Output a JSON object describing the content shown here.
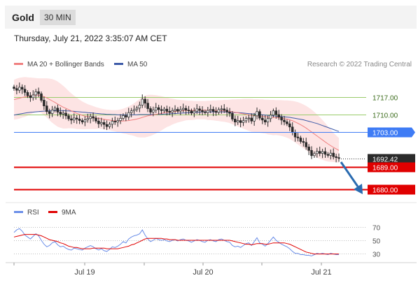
{
  "header": {
    "symbol": "Gold",
    "timeframe": "30 MIN"
  },
  "timestamp": "Thursday, July 21, 2022 3:35:07 AM CET",
  "legend": {
    "ma20": "MA 20 + Bollinger Bands",
    "ma50": "MA 50",
    "rsi": "RSI",
    "rsi_ma": "9MA"
  },
  "credit": "Research © 2022 Trading Central",
  "colors": {
    "ma20": "#f08080",
    "bollinger": "#fde4e4",
    "ma50": "#3d5aa8",
    "blue_level": "#3f7cf5",
    "red_level": "#e00000",
    "green_level": "#9acb6a",
    "arrow": "#2a6bb0",
    "rsi": "#6a8ee8",
    "rsi_ma": "#e00000"
  },
  "chart_data": [
    {
      "type": "candlestick",
      "title": "Gold",
      "ylim": [
        1676,
        1728
      ],
      "x_ticks": [
        "Jul 19",
        "Jul 20",
        "Jul 21"
      ],
      "levels": [
        {
          "label": "1717.00",
          "value": 1717.0,
          "kind": "green"
        },
        {
          "label": "1710.00",
          "value": 1710.0,
          "kind": "green"
        },
        {
          "label": "1703.00",
          "value": 1703.0,
          "kind": "blue"
        },
        {
          "label": "1692.42",
          "value": 1692.42,
          "kind": "current"
        },
        {
          "label": "1689.00",
          "value": 1689.0,
          "kind": "red"
        },
        {
          "label": "1680.00",
          "value": 1680.0,
          "kind": "red"
        }
      ],
      "close": [
        1720.5,
        1719.8,
        1721.0,
        1720.2,
        1718.9,
        1717.6,
        1716.8,
        1717.9,
        1719.2,
        1718.4,
        1715.8,
        1713.5,
        1711.2,
        1710.4,
        1711.8,
        1712.6,
        1711.0,
        1710.2,
        1710.6,
        1709.5,
        1708.3,
        1707.8,
        1708.6,
        1708.2,
        1707.6,
        1707.0,
        1707.9,
        1708.4,
        1709.2,
        1708.6,
        1707.4,
        1706.3,
        1706.8,
        1706.0,
        1705.2,
        1706.1,
        1707.3,
        1707.0,
        1707.6,
        1708.5,
        1709.6,
        1709.0,
        1710.8,
        1711.5,
        1712.0,
        1712.6,
        1713.8,
        1716.2,
        1714.6,
        1712.4,
        1711.0,
        1711.8,
        1712.8,
        1712.0,
        1711.6,
        1712.2,
        1711.3,
        1710.9,
        1711.6,
        1712.1,
        1711.4,
        1712.0,
        1712.5,
        1711.8,
        1711.5,
        1710.6,
        1711.4,
        1712.3,
        1711.7,
        1711.1,
        1710.8,
        1711.7,
        1712.1,
        1711.3,
        1710.9,
        1712.0,
        1712.3,
        1711.8,
        1711.0,
        1710.5,
        1708.2,
        1707.0,
        1707.6,
        1706.8,
        1707.5,
        1708.4,
        1708.6,
        1707.4,
        1709.5,
        1711.2,
        1708.6,
        1707.8,
        1707.0,
        1708.4,
        1709.8,
        1711.5,
        1710.0,
        1709.0,
        1707.8,
        1707.1,
        1706.3,
        1705.0,
        1702.8,
        1701.0,
        1700.6,
        1699.2,
        1698.8,
        1697.0,
        1695.6,
        1693.5,
        1694.3,
        1695.2,
        1694.4,
        1695.1,
        1694.0,
        1693.6,
        1694.5,
        1693.1,
        1692.7,
        1692.42
      ],
      "ma20": [
        1716.0,
        1716.3,
        1716.6,
        1716.9,
        1717.1,
        1717.3,
        1717.5,
        1717.7,
        1717.9,
        1717.8,
        1717.6,
        1717.2,
        1716.7,
        1716.1,
        1715.5,
        1714.9,
        1714.2,
        1713.6,
        1713.0,
        1712.5,
        1712.0,
        1711.5,
        1711.0,
        1710.5,
        1710.1,
        1709.7,
        1709.4,
        1709.2,
        1709.0,
        1708.8,
        1708.6,
        1708.5,
        1708.3,
        1708.1,
        1707.9,
        1707.8,
        1707.6,
        1707.5,
        1707.4,
        1707.4,
        1707.4,
        1707.5,
        1707.6,
        1707.8,
        1708.0,
        1708.2,
        1708.5,
        1708.9,
        1709.2,
        1709.5,
        1709.7,
        1709.9,
        1710.1,
        1710.3,
        1710.5,
        1710.7,
        1710.9,
        1711.0,
        1711.2,
        1711.3,
        1711.4,
        1711.5,
        1711.6,
        1711.7,
        1711.7,
        1711.7,
        1711.7,
        1711.8,
        1711.8,
        1711.8,
        1711.8,
        1711.7,
        1711.7,
        1711.7,
        1711.6,
        1711.6,
        1711.5,
        1711.5,
        1711.4,
        1711.3,
        1711.1,
        1710.9,
        1710.7,
        1710.5,
        1710.3,
        1710.1,
        1709.9,
        1709.7,
        1709.6,
        1709.5,
        1709.4,
        1709.3,
        1709.2,
        1709.0,
        1708.9,
        1708.8,
        1708.8,
        1708.7,
        1708.6,
        1708.4,
        1708.2,
        1707.9,
        1707.5,
        1707.0,
        1706.5,
        1705.9,
        1705.3,
        1704.6,
        1703.8,
        1703.0,
        1702.2,
        1701.4,
        1700.6,
        1699.8,
        1699.0,
        1698.2,
        1697.5,
        1696.8,
        1696.2,
        1695.6
      ],
      "bb_upper": [
        1724.0,
        1724.5,
        1724.8,
        1725.0,
        1725.1,
        1725.0,
        1724.9,
        1724.8,
        1724.7,
        1724.6,
        1724.6,
        1724.6,
        1724.6,
        1724.5,
        1724.3,
        1723.9,
        1723.3,
        1722.5,
        1721.6,
        1720.6,
        1719.5,
        1718.5,
        1717.6,
        1716.8,
        1716.0,
        1715.3,
        1714.7,
        1714.2,
        1713.8,
        1713.4,
        1713.0,
        1712.7,
        1712.4,
        1712.2,
        1712.0,
        1711.9,
        1711.8,
        1711.8,
        1711.9,
        1712.1,
        1712.4,
        1712.8,
        1713.3,
        1713.9,
        1714.6,
        1715.4,
        1716.2,
        1717.0,
        1717.6,
        1717.9,
        1718.0,
        1717.9,
        1717.8,
        1717.6,
        1717.4,
        1717.1,
        1716.8,
        1716.6,
        1716.4,
        1716.2,
        1716.0,
        1715.9,
        1715.8,
        1715.7,
        1715.6,
        1715.6,
        1715.5,
        1715.5,
        1715.5,
        1715.5,
        1715.5,
        1715.6,
        1715.6,
        1715.7,
        1715.7,
        1715.8,
        1715.8,
        1715.9,
        1715.9,
        1716.0,
        1716.1,
        1716.1,
        1716.2,
        1716.2,
        1716.3,
        1716.3,
        1716.3,
        1716.3,
        1716.2,
        1716.2,
        1716.1,
        1716.1,
        1716.0,
        1716.0,
        1715.9,
        1715.9,
        1715.8,
        1715.8,
        1715.8,
        1715.7,
        1715.7,
        1715.6,
        1715.5,
        1715.3,
        1715.0,
        1714.6,
        1714.1,
        1713.5,
        1712.8,
        1712.0,
        1711.1,
        1710.1,
        1709.0,
        1707.8,
        1706.6,
        1705.3,
        1704.0,
        1702.7,
        1701.6,
        1700.6
      ],
      "bb_lower": [
        1708.0,
        1708.1,
        1708.4,
        1708.8,
        1709.1,
        1709.6,
        1710.1,
        1710.6,
        1711.1,
        1711.0,
        1710.6,
        1709.8,
        1708.8,
        1707.7,
        1706.7,
        1705.9,
        1705.1,
        1704.7,
        1704.4,
        1704.4,
        1704.5,
        1704.5,
        1704.4,
        1704.2,
        1704.2,
        1704.1,
        1704.1,
        1704.2,
        1704.2,
        1704.2,
        1704.2,
        1704.3,
        1704.2,
        1704.0,
        1703.8,
        1703.7,
        1703.4,
        1703.2,
        1702.9,
        1702.7,
        1702.4,
        1702.2,
        1701.9,
        1701.7,
        1701.4,
        1701.0,
        1700.8,
        1700.8,
        1700.8,
        1701.1,
        1701.4,
        1701.9,
        1702.4,
        1703.0,
        1703.6,
        1704.3,
        1705.0,
        1705.4,
        1706.0,
        1706.4,
        1706.8,
        1707.1,
        1707.4,
        1707.7,
        1707.8,
        1707.8,
        1707.9,
        1708.1,
        1708.1,
        1708.1,
        1708.1,
        1707.8,
        1707.8,
        1707.7,
        1707.5,
        1707.4,
        1707.2,
        1707.1,
        1706.9,
        1706.6,
        1706.1,
        1705.7,
        1705.2,
        1704.8,
        1704.3,
        1703.9,
        1703.5,
        1703.1,
        1703.0,
        1702.8,
        1702.7,
        1702.5,
        1702.4,
        1702.0,
        1701.9,
        1701.7,
        1701.8,
        1701.6,
        1701.4,
        1701.1,
        1700.7,
        1700.2,
        1699.5,
        1698.7,
        1698.0,
        1697.2,
        1696.5,
        1695.7,
        1694.8,
        1694.0,
        1693.3,
        1692.7,
        1692.2,
        1691.8,
        1691.4,
        1691.1,
        1691.0,
        1690.9,
        1690.8,
        1690.6
      ],
      "ma50": [
        1709.8,
        1710.0,
        1710.2,
        1710.4,
        1710.6,
        1710.8,
        1710.9,
        1711.0,
        1711.1,
        1711.2,
        1711.3,
        1711.4,
        1711.5,
        1711.5,
        1711.6,
        1711.6,
        1711.6,
        1711.6,
        1711.6,
        1711.5,
        1711.5,
        1711.4,
        1711.3,
        1711.2,
        1711.1,
        1711.0,
        1710.9,
        1710.8,
        1710.7,
        1710.6,
        1710.5,
        1710.4,
        1710.3,
        1710.2,
        1710.1,
        1710.1,
        1710.0,
        1710.0,
        1709.9,
        1709.9,
        1709.9,
        1709.9,
        1709.9,
        1709.9,
        1709.9,
        1709.9,
        1710.0,
        1710.0,
        1710.0,
        1710.0,
        1710.0,
        1710.0,
        1710.1,
        1710.1,
        1710.1,
        1710.2,
        1710.2,
        1710.3,
        1710.4,
        1710.4,
        1710.5,
        1710.6,
        1710.6,
        1710.7,
        1710.8,
        1710.9,
        1710.9,
        1711.0,
        1711.0,
        1711.1,
        1711.1,
        1711.1,
        1711.1,
        1711.1,
        1711.1,
        1711.1,
        1711.1,
        1711.1,
        1711.0,
        1711.0,
        1710.9,
        1710.8,
        1710.8,
        1710.7,
        1710.6,
        1710.5,
        1710.4,
        1710.3,
        1710.2,
        1710.1,
        1710.0,
        1709.9,
        1709.8,
        1709.7,
        1709.6,
        1709.5,
        1709.4,
        1709.3,
        1709.2,
        1709.1,
        1709.0,
        1708.9,
        1708.7,
        1708.5,
        1708.3,
        1708.1,
        1707.9,
        1707.6,
        1707.3,
        1707.0,
        1706.7,
        1706.4,
        1706.0,
        1705.6,
        1705.2,
        1704.8,
        1704.4,
        1704.0,
        1703.6,
        1703.2
      ]
    },
    {
      "type": "line",
      "title": "RSI",
      "ylim": [
        20,
        80
      ],
      "y_ticks": [
        70,
        50,
        30
      ],
      "rsi": [
        62,
        66,
        68,
        64,
        58,
        55,
        52,
        56,
        60,
        57,
        50,
        44,
        40,
        42,
        46,
        48,
        43,
        40,
        41,
        38,
        36,
        35,
        38,
        37,
        36,
        35,
        38,
        40,
        42,
        40,
        37,
        35,
        37,
        34,
        33,
        36,
        40,
        39,
        41,
        44,
        48,
        46,
        52,
        55,
        57,
        58,
        60,
        66,
        58,
        52,
        48,
        50,
        53,
        51,
        50,
        51,
        49,
        48,
        50,
        51,
        49,
        51,
        52,
        50,
        49,
        47,
        49,
        51,
        50,
        48,
        47,
        50,
        51,
        49,
        48,
        51,
        52,
        50,
        48,
        47,
        42,
        40,
        41,
        39,
        42,
        45,
        46,
        42,
        48,
        54,
        46,
        44,
        41,
        45,
        50,
        55,
        50,
        47,
        44,
        42,
        40,
        37,
        33,
        30,
        30,
        28,
        28,
        27,
        27,
        26,
        28,
        30,
        29,
        30,
        29,
        28,
        30,
        29,
        28,
        28
      ],
      "ma9": [
        55,
        56,
        57,
        58,
        59,
        59,
        59,
        59,
        59,
        58,
        57,
        55,
        53,
        51,
        50,
        49,
        48,
        46,
        45,
        43,
        41,
        40,
        39,
        39,
        38,
        37,
        37,
        37,
        37,
        38,
        38,
        38,
        38,
        38,
        37,
        37,
        37,
        37,
        37,
        38,
        39,
        40,
        41,
        43,
        44,
        46,
        48,
        50,
        52,
        53,
        53,
        53,
        53,
        53,
        53,
        52,
        52,
        51,
        51,
        51,
        50,
        50,
        50,
        50,
        50,
        50,
        50,
        50,
        50,
        50,
        50,
        50,
        50,
        50,
        50,
        50,
        50,
        50,
        50,
        50,
        49,
        48,
        47,
        46,
        45,
        44,
        44,
        43,
        44,
        45,
        45,
        45,
        44,
        44,
        45,
        46,
        46,
        46,
        46,
        46,
        45,
        44,
        42,
        40,
        38,
        36,
        34,
        32,
        31,
        30,
        29,
        29,
        29,
        29,
        29,
        29,
        29,
        29,
        29,
        29
      ]
    }
  ]
}
